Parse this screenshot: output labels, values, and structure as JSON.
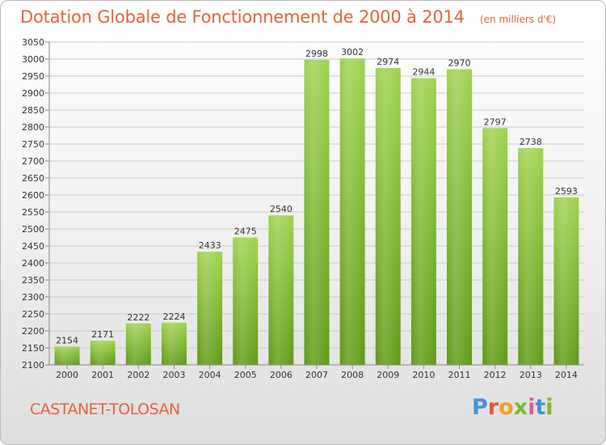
{
  "header": {
    "title": "Dotation Globale de Fonctionnement de 2000 à 2014",
    "unit": "(en milliers d'€)"
  },
  "footer": {
    "city": "CASTANET-TOLOSAN",
    "logo_text": "Proxiti",
    "logo_colors": [
      "#4a8fd8",
      "#e8552e",
      "#f0a020",
      "#7cb82f",
      "#e05aa0",
      "#4a8fd8",
      "#7cb82f"
    ]
  },
  "colors": {
    "title": "#e0653a",
    "bar_top": "#9ed34f",
    "bar_bottom": "#5f9a17"
  },
  "chart_data": {
    "type": "bar",
    "categories": [
      "2000",
      "2001",
      "2002",
      "2003",
      "2004",
      "2005",
      "2006",
      "2007",
      "2008",
      "2009",
      "2010",
      "2011",
      "2012",
      "2013",
      "2014"
    ],
    "values": [
      2154,
      2171,
      2222,
      2224,
      2433,
      2475,
      2540,
      2998,
      3002,
      2974,
      2944,
      2970,
      2797,
      2738,
      2593
    ],
    "ylim": [
      2100,
      3050
    ],
    "ytick_step": 50,
    "grid": true
  }
}
